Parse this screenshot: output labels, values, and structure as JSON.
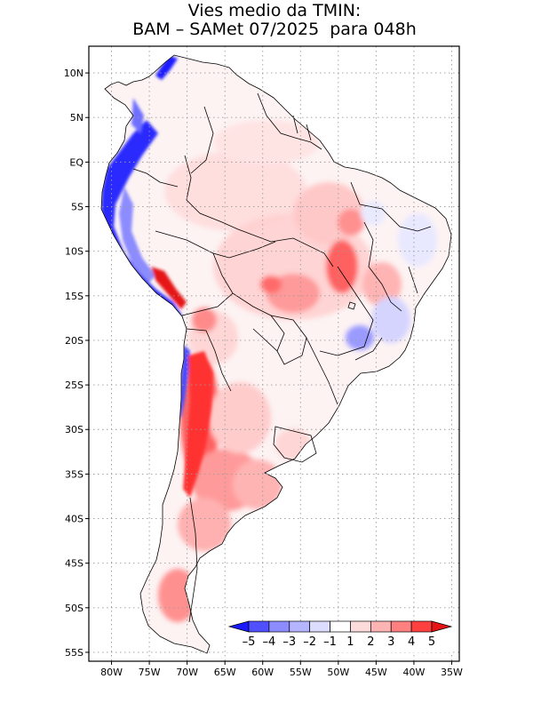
{
  "title": {
    "line1": "Vies medio da TMIN:",
    "line2": "BAM – SAMet 07/2025  para 048h"
  },
  "map": {
    "region": "South America",
    "lon_range": [
      -83,
      -34
    ],
    "lat_range": [
      -56,
      13
    ],
    "lat_ticks": [
      {
        "value": 10,
        "label": "10N"
      },
      {
        "value": 5,
        "label": "5N"
      },
      {
        "value": 0,
        "label": "EQ"
      },
      {
        "value": -5,
        "label": "5S"
      },
      {
        "value": -10,
        "label": "10S"
      },
      {
        "value": -15,
        "label": "15S"
      },
      {
        "value": -20,
        "label": "20S"
      },
      {
        "value": -25,
        "label": "25S"
      },
      {
        "value": -30,
        "label": "30S"
      },
      {
        "value": -35,
        "label": "35S"
      },
      {
        "value": -40,
        "label": "40S"
      },
      {
        "value": -45,
        "label": "45S"
      },
      {
        "value": -50,
        "label": "50S"
      },
      {
        "value": -55,
        "label": "55S"
      }
    ],
    "lon_ticks": [
      {
        "value": -80,
        "label": "80W"
      },
      {
        "value": -75,
        "label": "75W"
      },
      {
        "value": -70,
        "label": "70W"
      },
      {
        "value": -65,
        "label": "65W"
      },
      {
        "value": -60,
        "label": "60W"
      },
      {
        "value": -55,
        "label": "55W"
      },
      {
        "value": -50,
        "label": "50W"
      },
      {
        "value": -45,
        "label": "45W"
      },
      {
        "value": -40,
        "label": "40W"
      },
      {
        "value": -35,
        "label": "35W"
      }
    ]
  },
  "colorbar": {
    "labels": [
      "–5",
      "–4",
      "–3",
      "–2",
      "–1",
      "1",
      "2",
      "3",
      "4",
      "5"
    ],
    "colors": [
      "#1a1aff",
      "#5050ff",
      "#8c8cff",
      "#b4b4ff",
      "#dcdcff",
      "#ffffff",
      "#ffdcdc",
      "#ffb4b4",
      "#ff8080",
      "#ff4040",
      "#e61414"
    ]
  }
}
